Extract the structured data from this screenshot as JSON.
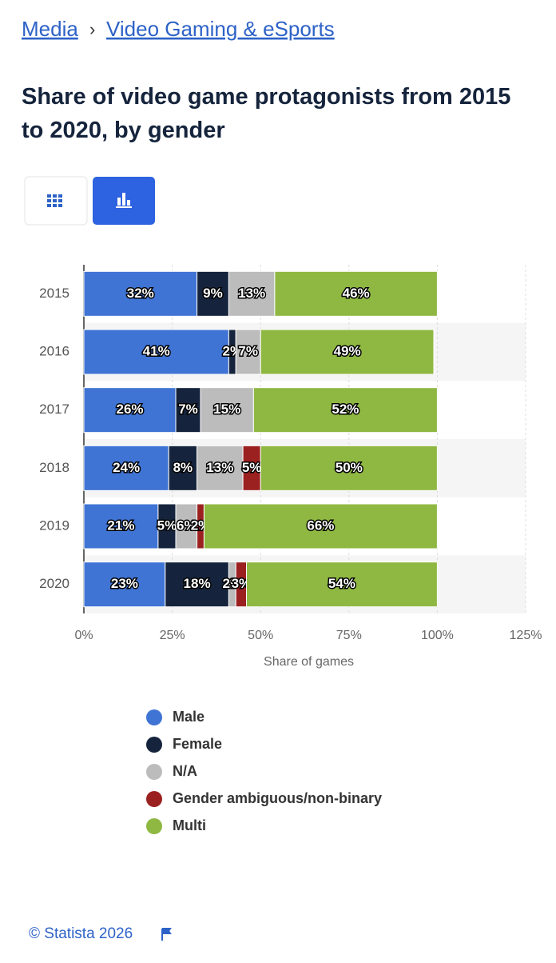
{
  "breadcrumb": [
    "Media",
    "Video Gaming & eSports"
  ],
  "breadcrumb_separator": "›",
  "footer": "© Statista 2026",
  "chart_data": {
    "type": "stacked-bar-horizontal",
    "title": "Share of video game protagonists from 2015 to 2020, by gender",
    "categories": [
      "2015",
      "2016",
      "2017",
      "2018",
      "2019",
      "2020"
    ],
    "series": [
      {
        "name": "Male",
        "color": "#3f74d4",
        "values": [
          32,
          41,
          26,
          24,
          21,
          23
        ],
        "value_labels": [
          "32%",
          "41%",
          "26%",
          "24%",
          "21%",
          "23%"
        ]
      },
      {
        "name": "Female",
        "color": "#15243c",
        "values": [
          9,
          2,
          7,
          8,
          5,
          18
        ],
        "value_labels": [
          "9%",
          "2%",
          "7%",
          "8%",
          "5%",
          "18%"
        ]
      },
      {
        "name": "N/A",
        "color": "#bcbcbc",
        "values": [
          13,
          7,
          15,
          13,
          6,
          2
        ],
        "value_labels": [
          "13%",
          "7%",
          "15%",
          "13%",
          "6%",
          "2%"
        ]
      },
      {
        "name": "Gender ambiguous/non-binary",
        "color": "#9b2120",
        "values": [
          null,
          null,
          null,
          5,
          2,
          3
        ],
        "value_labels": [
          null,
          null,
          null,
          "5%",
          "2%",
          "3%"
        ]
      },
      {
        "name": "Multi",
        "color": "#8fb842",
        "values": [
          46,
          49,
          52,
          50,
          66,
          54
        ],
        "value_labels": [
          "46%",
          "49%",
          "52%",
          "50%",
          "66%",
          "54%"
        ]
      }
    ],
    "xlim": [
      0,
      125
    ],
    "xticks": [
      {
        "value": 0,
        "label": "0%"
      },
      {
        "value": 25,
        "label": "25%"
      },
      {
        "value": 50,
        "label": "50%"
      },
      {
        "value": 75,
        "label": "75%"
      },
      {
        "value": 100,
        "label": "100%"
      },
      {
        "value": 125,
        "label": "125%"
      }
    ],
    "xlabel": "Share of games",
    "grid": true,
    "legend": "bottom"
  }
}
